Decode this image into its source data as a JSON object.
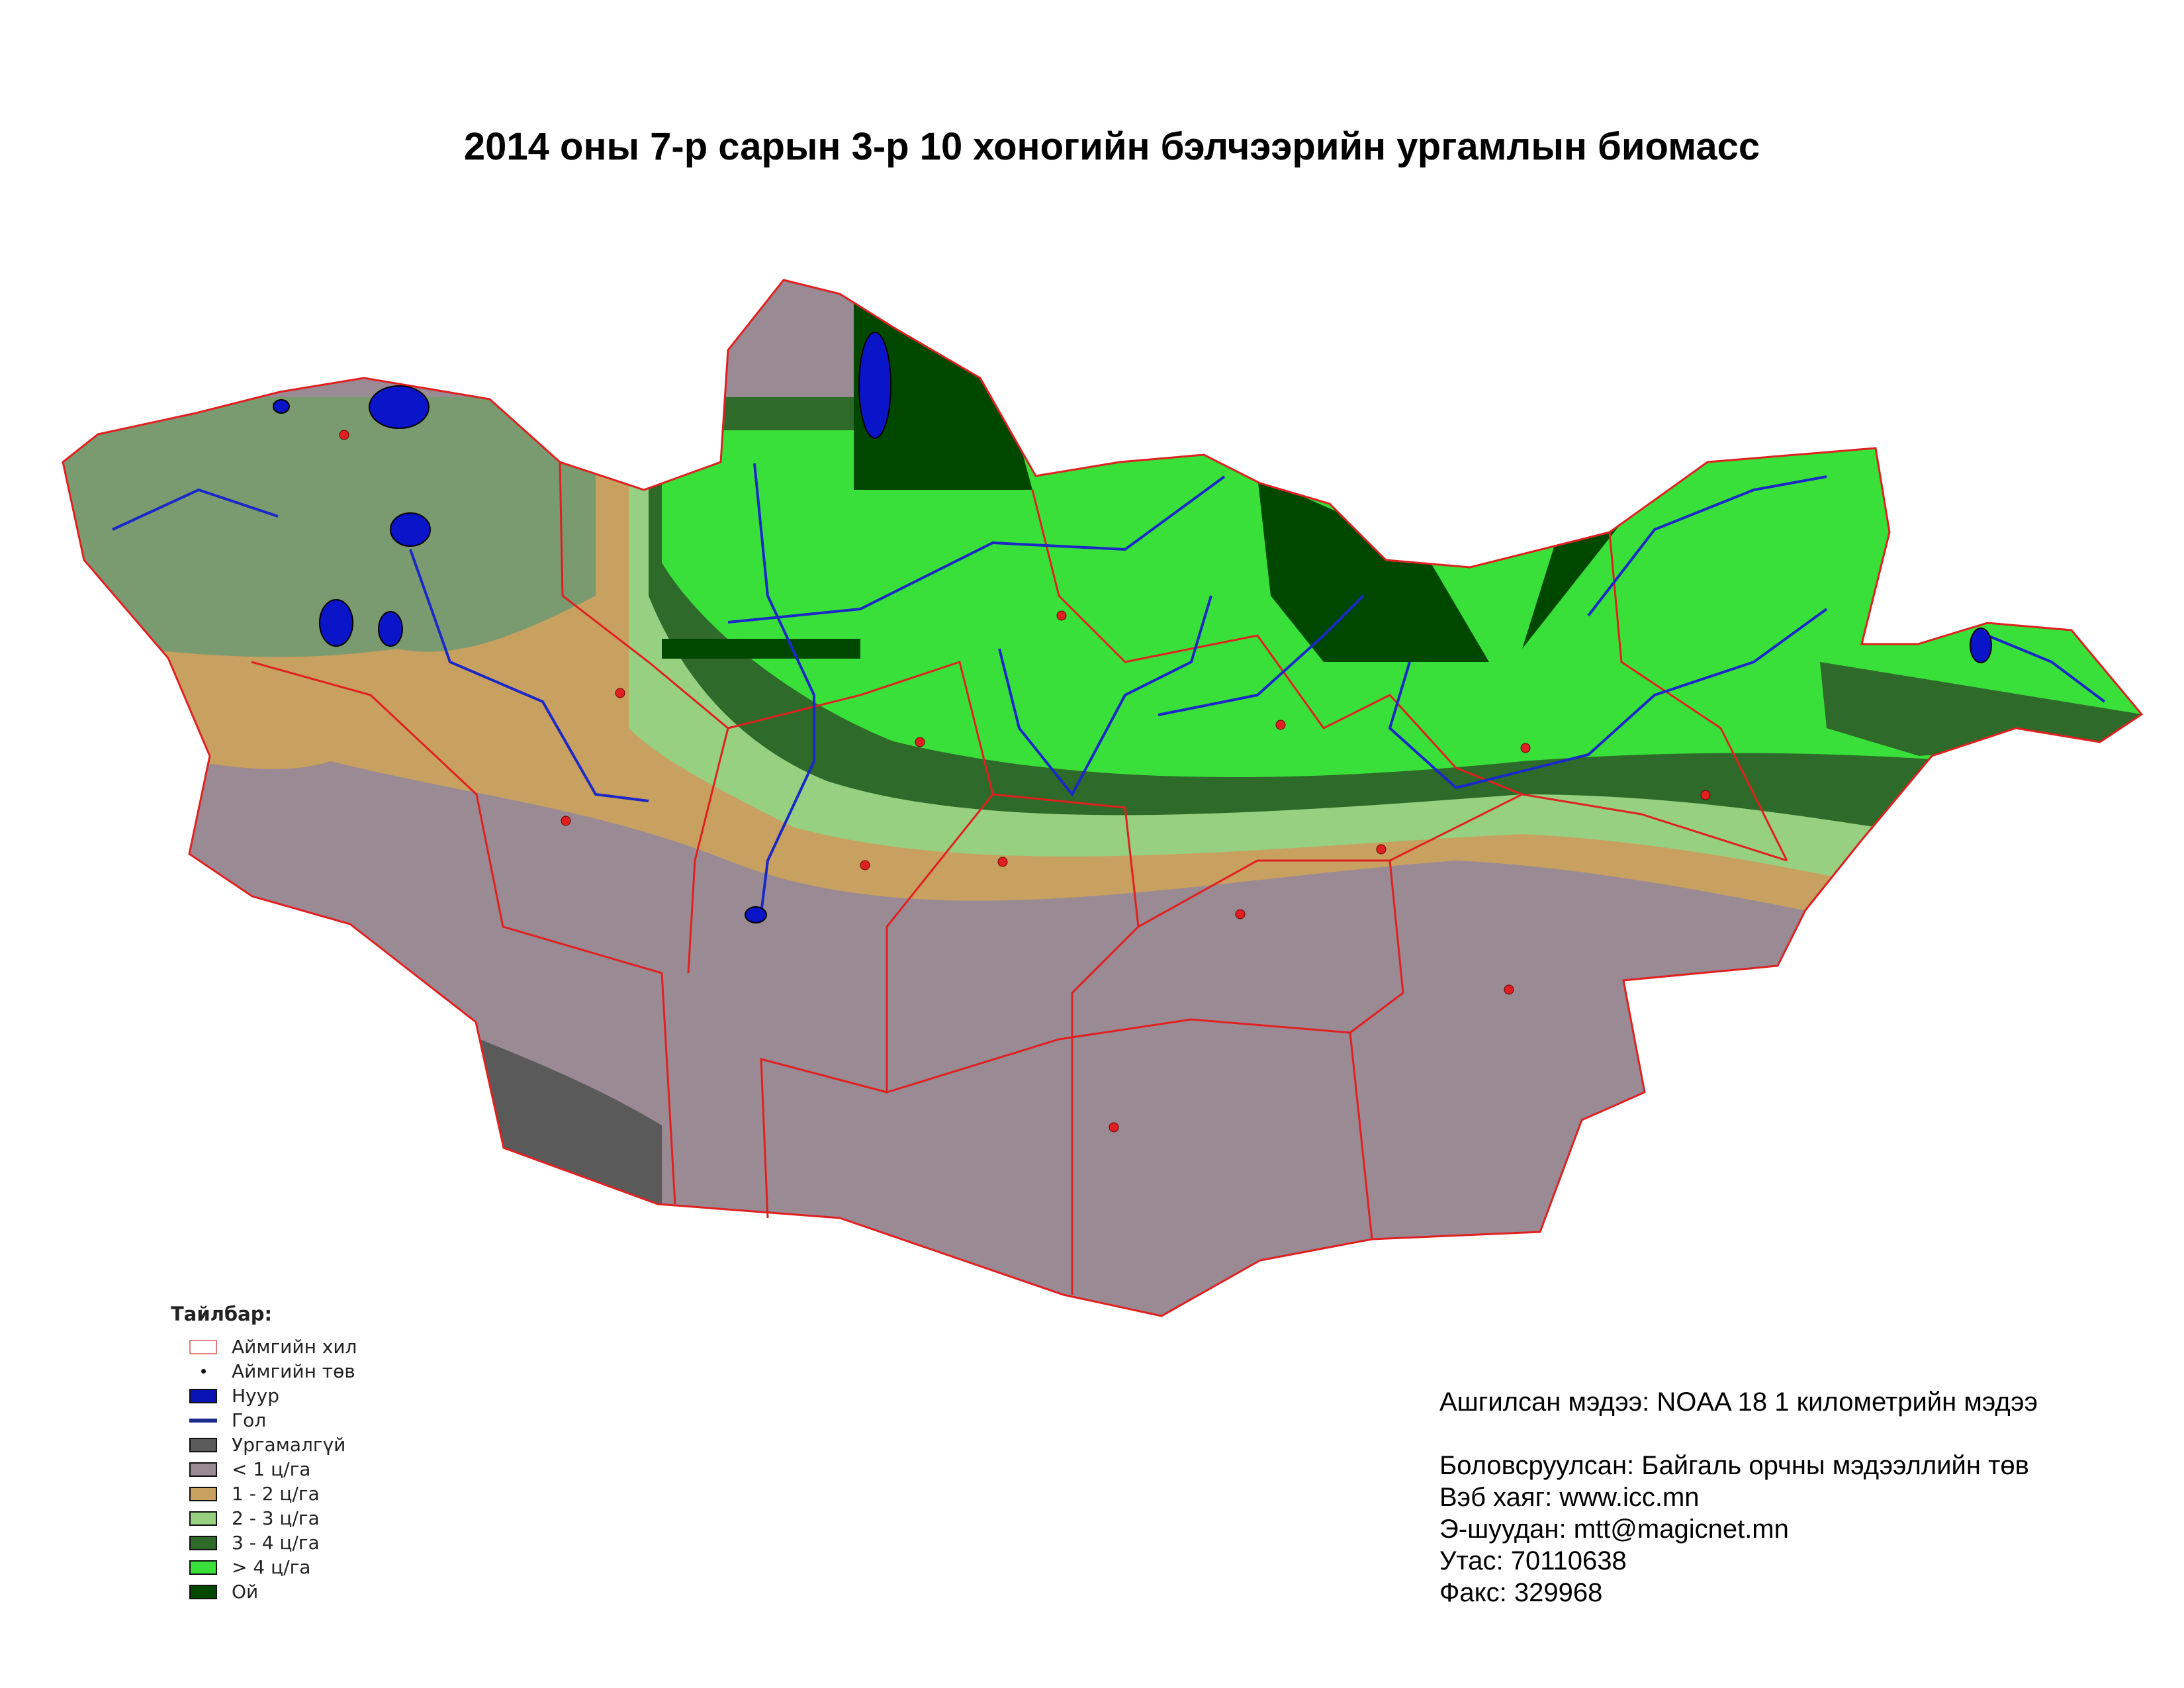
{
  "title": "2014 оны 7-р сарын 3-р 10 хоногийн бэлчээрийн ургамлын биомасс",
  "legend": {
    "title": "Тайлбар:",
    "items": [
      {
        "label": "Аймгийн хил",
        "type": "outline",
        "color": "#e08080"
      },
      {
        "label": "Аймгийн төв",
        "type": "dot",
        "color": "#111111"
      },
      {
        "label": "Нуур",
        "type": "fill",
        "color": "#0a14b4"
      },
      {
        "label": "Гол",
        "type": "line",
        "color": "#1c2a8c"
      },
      {
        "label": "Ургамалгүй",
        "type": "fill",
        "color": "#5a5a5a"
      },
      {
        "label": "< 1 ц/га",
        "type": "fill",
        "color": "#9a8a94"
      },
      {
        "label": "1 - 2 ц/га",
        "type": "fill",
        "color": "#c8a060"
      },
      {
        "label": "2 - 3 ц/га",
        "type": "fill",
        "color": "#96d080"
      },
      {
        "label": "3 - 4 ц/га",
        "type": "fill",
        "color": "#2e6a2a"
      },
      {
        "label": "> 4 ц/га",
        "type": "fill",
        "color": "#3ae03a"
      },
      {
        "label": "Ой",
        "type": "fill",
        "color": "#004800"
      }
    ]
  },
  "info": {
    "source": "Ашгилсан мэдээ: NOAA 18 1 километрийн мэдээ",
    "producer": "Боловсруулсан: Байгаль орчны мэдээллийн төв",
    "website": "Вэб хаяг: www.icc.mn",
    "email": "Э-шуудан: mtt@magicnet.mn",
    "phone": "Утас: 70110638",
    "fax": "Факс: 329968"
  },
  "colors": {
    "boundary": "#e02020",
    "aimag_center": "#e02020",
    "lake": "#0a14c8",
    "river": "#1a28c8"
  }
}
